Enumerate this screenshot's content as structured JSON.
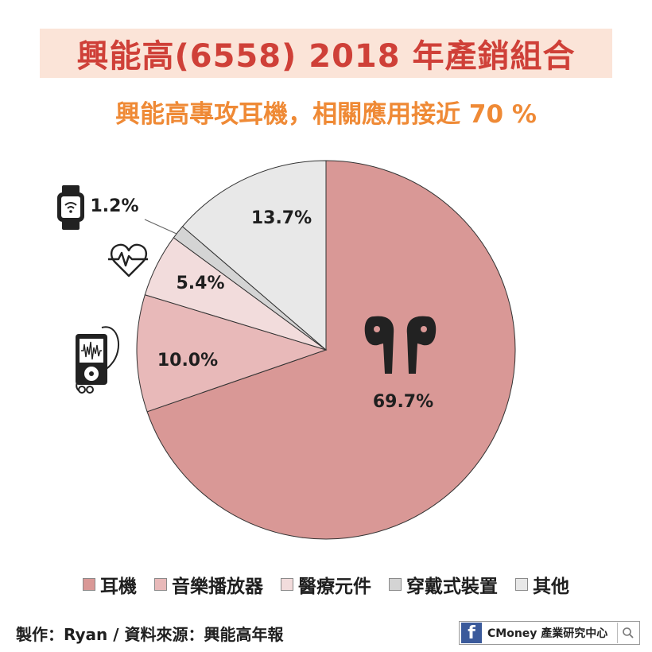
{
  "header": {
    "title": "興能高(6558) 2018 年產銷組合",
    "subtitle": "興能高專攻耳機，相關應用接近 70 %"
  },
  "chart_data": {
    "type": "pie",
    "title": "興能高(6558) 2018 年產銷組合",
    "subtitle": "興能高專攻耳機，相關應用接近 70 %",
    "start": "12 o'clock, clockwise",
    "legend_position": "bottom",
    "slices": [
      {
        "name": "耳機",
        "value": 69.7,
        "label": "69.7%",
        "color": "#d99896",
        "icon": "earbuds-icon"
      },
      {
        "name": "音樂播放器",
        "value": 10.0,
        "label": "10.0%",
        "color": "#e8b9b9",
        "icon": "music-player-icon"
      },
      {
        "name": "醫療元件",
        "value": 5.4,
        "label": "5.4%",
        "color": "#f2dcdc",
        "icon": "heartbeat-icon"
      },
      {
        "name": "穿戴式裝置",
        "value": 1.2,
        "label": "1.2%",
        "color": "#d4d4d4",
        "icon": "smartwatch-icon"
      },
      {
        "name": "其他",
        "value": 13.7,
        "label": "13.7%",
        "color": "#e8e8e8"
      }
    ]
  },
  "legend": {
    "items": [
      {
        "label": "耳機",
        "color": "#d99896"
      },
      {
        "label": "音樂播放器",
        "color": "#e8b9b9"
      },
      {
        "label": "醫療元件",
        "color": "#f2dcdc"
      },
      {
        "label": "穿戴式裝置",
        "color": "#d4d4d4"
      },
      {
        "label": "其他",
        "color": "#e8e8e8"
      }
    ]
  },
  "footer": {
    "source": "製作：Ryan / 資料來源：興能高年報",
    "brand_icon": "facebook-icon",
    "brand": "CMoney 產業研究中心",
    "search_icon": "search-icon"
  }
}
